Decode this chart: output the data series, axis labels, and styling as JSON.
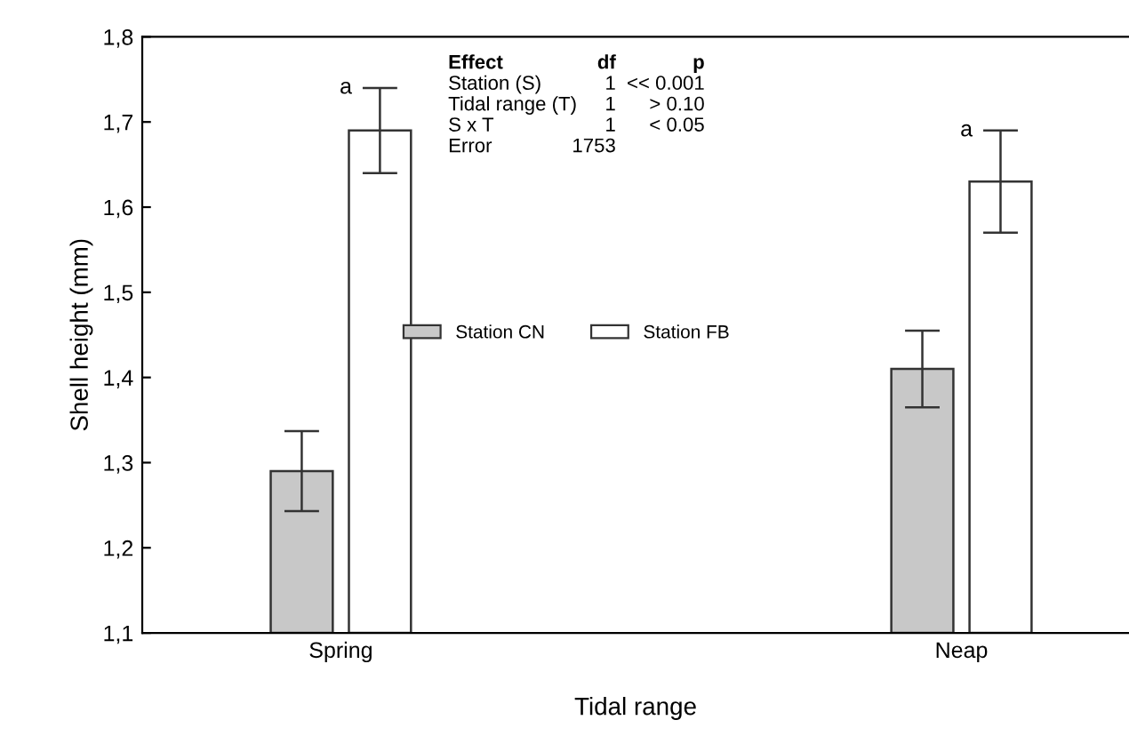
{
  "chart_data": {
    "type": "bar",
    "xlabel": "Tidal range",
    "ylabel": "Shell height (mm)",
    "categories": [
      "Spring",
      "Neap"
    ],
    "series": [
      {
        "name": "Station CN",
        "color": "#c8c8c8",
        "values": [
          1.29,
          1.41
        ],
        "errors": [
          0.047,
          0.045
        ]
      },
      {
        "name": "Station FB",
        "color": "#ffffff",
        "values": [
          1.69,
          1.63
        ],
        "errors": [
          0.05,
          0.06
        ]
      }
    ],
    "ylim": [
      1.1,
      1.8
    ],
    "yticks": [
      {
        "value": 1.1,
        "label": "1,1"
      },
      {
        "value": 1.2,
        "label": "1,2"
      },
      {
        "value": 1.3,
        "label": "1,3"
      },
      {
        "value": 1.4,
        "label": "1,4"
      },
      {
        "value": 1.5,
        "label": "1,5"
      },
      {
        "value": 1.6,
        "label": "1,6"
      },
      {
        "value": 1.7,
        "label": "1,7"
      },
      {
        "value": 1.8,
        "label": "1,8"
      }
    ],
    "annotations": [
      "a",
      "a",
      "Effect",
      "df",
      "p",
      "Station (S)",
      "1",
      "<< 0.001",
      "Tidal range (T)",
      "1",
      "> 0.10",
      "S x T",
      "1",
      "< 0.05",
      "Error",
      "1753"
    ],
    "legend": "top",
    "grid": false
  }
}
